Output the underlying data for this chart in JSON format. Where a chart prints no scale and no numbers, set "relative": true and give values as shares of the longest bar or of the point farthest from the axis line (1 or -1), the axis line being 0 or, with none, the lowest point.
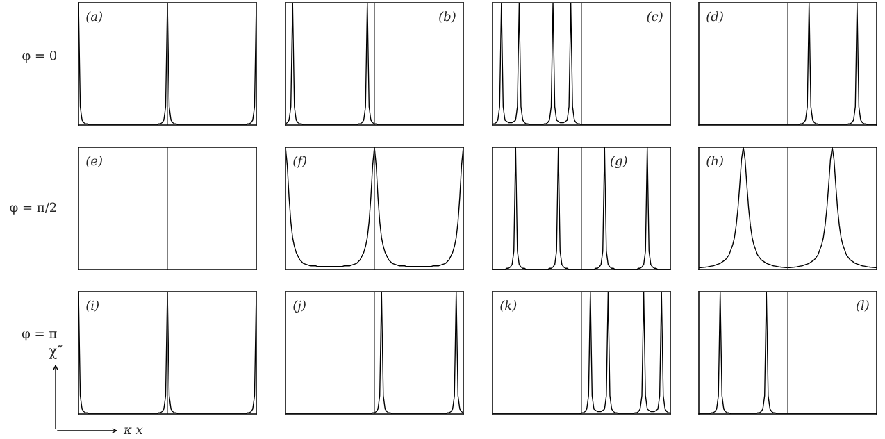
{
  "chart_data": [
    {
      "type": "line",
      "relative": true,
      "tick_labels": false,
      "ylabel": "φ = 0",
      "annotations": [
        "(a)"
      ],
      "categories": [
        null,
        null,
        null,
        null,
        null,
        null,
        null,
        null,
        null,
        null,
        null,
        null,
        null,
        null,
        null,
        null,
        null,
        null,
        null,
        null,
        null,
        null,
        null,
        null,
        null,
        null,
        null,
        null,
        null,
        null,
        null,
        null,
        null,
        null,
        null,
        null,
        null,
        null,
        null,
        null,
        null,
        null,
        null,
        null,
        null,
        null,
        null,
        null,
        null,
        null,
        null,
        null,
        null,
        null,
        null,
        null,
        null,
        null,
        null,
        null,
        null,
        null,
        null,
        null,
        null,
        null,
        null,
        null,
        null,
        null,
        null,
        null,
        null,
        null,
        null,
        null,
        null,
        null,
        null,
        null,
        null,
        null,
        null,
        null,
        null,
        null,
        null,
        null,
        null,
        null,
        null,
        null,
        null,
        null,
        null,
        null,
        null,
        null,
        null,
        null,
        null
      ],
      "series": [
        {
          "color": "#000000",
          "values": [
            1,
            0.15,
            0.04,
            0.02,
            0.01,
            0.01,
            0,
            0,
            0,
            0,
            0,
            0,
            0,
            0,
            0,
            0,
            0,
            0,
            0,
            0,
            0,
            0,
            0,
            0,
            0,
            0,
            0,
            0,
            0,
            0,
            0,
            0,
            0,
            0,
            0,
            0,
            0,
            0,
            0,
            0,
            0,
            0,
            0,
            0,
            0,
            0.01,
            0.01,
            0.02,
            0.04,
            0.15,
            1,
            0.15,
            0.04,
            0.02,
            0.01,
            0.01,
            0,
            0,
            0,
            0,
            0,
            0,
            0,
            0,
            0,
            0,
            0,
            0,
            0,
            0,
            0,
            0,
            0,
            0,
            0,
            0,
            0,
            0,
            0,
            0,
            0,
            0,
            0,
            0,
            0,
            0,
            0,
            0,
            0,
            0,
            0,
            0,
            0,
            0,
            0,
            0.01,
            0.01,
            0.02,
            0.04,
            0.15,
            1
          ]
        }
      ]
    },
    {
      "type": "line",
      "relative": true,
      "tick_labels": false,
      "annotations": [
        "(b)"
      ],
      "categories": [
        null,
        null,
        null,
        null,
        null,
        null,
        null,
        null,
        null,
        null,
        null,
        null,
        null,
        null,
        null,
        null,
        null,
        null,
        null,
        null,
        null,
        null,
        null,
        null,
        null,
        null,
        null,
        null,
        null,
        null,
        null,
        null,
        null,
        null,
        null,
        null,
        null,
        null,
        null,
        null,
        null,
        null,
        null,
        null,
        null,
        null,
        null,
        null,
        null,
        null,
        null,
        null,
        null,
        null,
        null,
        null,
        null,
        null,
        null,
        null,
        null,
        null,
        null,
        null,
        null,
        null,
        null,
        null,
        null,
        null,
        null,
        null,
        null,
        null,
        null,
        null,
        null,
        null,
        null,
        null,
        null,
        null,
        null,
        null,
        null,
        null,
        null,
        null,
        null,
        null,
        null,
        null,
        null,
        null,
        null,
        null,
        null,
        null,
        null,
        null,
        null
      ],
      "series": [
        {
          "color": "#000000",
          "values": [
            0.01,
            0.02,
            0.04,
            0.15,
            1,
            0.15,
            0.04,
            0.02,
            0.01,
            0.01,
            0,
            0,
            0,
            0,
            0,
            0,
            0,
            0,
            0,
            0,
            0,
            0,
            0,
            0,
            0,
            0,
            0,
            0,
            0,
            0,
            0,
            0,
            0,
            0,
            0,
            0,
            0,
            0,
            0,
            0,
            0,
            0.01,
            0.01,
            0.02,
            0.04,
            0.15,
            1,
            0.15,
            0.04,
            0.02,
            0.01,
            0.01,
            0,
            0,
            0,
            0,
            0,
            0,
            0,
            0,
            0,
            0,
            0,
            0,
            0,
            0,
            0,
            0,
            0,
            0,
            0,
            0,
            0,
            0,
            0,
            0,
            0,
            0,
            0,
            0,
            0,
            0,
            0,
            0,
            0,
            0,
            0,
            0,
            0,
            0,
            0,
            0,
            0,
            0,
            0,
            0,
            0,
            0,
            0,
            0,
            0
          ]
        }
      ]
    },
    {
      "type": "line",
      "relative": true,
      "tick_labels": false,
      "annotations": [
        "(c)"
      ],
      "categories": [
        null,
        null,
        null,
        null,
        null,
        null,
        null,
        null,
        null,
        null,
        null,
        null,
        null,
        null,
        null,
        null,
        null,
        null,
        null,
        null,
        null,
        null,
        null,
        null,
        null,
        null,
        null,
        null,
        null,
        null,
        null,
        null,
        null,
        null,
        null,
        null,
        null,
        null,
        null,
        null,
        null,
        null,
        null,
        null,
        null,
        null,
        null,
        null,
        null,
        null,
        null,
        null,
        null,
        null,
        null,
        null,
        null,
        null,
        null,
        null,
        null,
        null,
        null,
        null,
        null,
        null,
        null,
        null,
        null,
        null,
        null,
        null,
        null,
        null,
        null,
        null,
        null,
        null,
        null,
        null,
        null,
        null,
        null,
        null,
        null,
        null,
        null,
        null,
        null,
        null,
        null,
        null,
        null,
        null,
        null,
        null,
        null,
        null,
        null,
        null,
        null
      ],
      "series": [
        {
          "color": "#000000",
          "values": [
            0.01,
            0.01,
            0.02,
            0.04,
            0.15,
            1,
            0.15,
            0.04,
            0.03,
            0.02,
            0.02,
            0.02,
            0.03,
            0.04,
            0.15,
            1,
            0.15,
            0.04,
            0.02,
            0.01,
            0.01,
            0,
            0,
            0,
            0,
            0,
            0,
            0,
            0,
            0.01,
            0.01,
            0.02,
            0.04,
            0.15,
            1,
            0.15,
            0.04,
            0.03,
            0.02,
            0.02,
            0.02,
            0.03,
            0.04,
            0.15,
            1,
            0.15,
            0.04,
            0.02,
            0.01,
            0.01,
            0,
            0,
            0,
            0,
            0,
            0,
            0,
            0,
            0,
            0,
            0,
            0,
            0,
            0,
            0,
            0,
            0,
            0,
            0,
            0,
            0,
            0,
            0,
            0,
            0,
            0,
            0,
            0,
            0,
            0,
            0,
            0,
            0,
            0,
            0,
            0,
            0,
            0,
            0,
            0,
            0,
            0,
            0,
            0,
            0,
            0,
            0,
            0,
            0,
            0,
            0
          ]
        }
      ]
    },
    {
      "type": "line",
      "relative": true,
      "tick_labels": false,
      "annotations": [
        "(d)"
      ],
      "categories": [
        null,
        null,
        null,
        null,
        null,
        null,
        null,
        null,
        null,
        null,
        null,
        null,
        null,
        null,
        null,
        null,
        null,
        null,
        null,
        null,
        null,
        null,
        null,
        null,
        null,
        null,
        null,
        null,
        null,
        null,
        null,
        null,
        null,
        null,
        null,
        null,
        null,
        null,
        null,
        null,
        null,
        null,
        null,
        null,
        null,
        null,
        null,
        null,
        null,
        null,
        null,
        null,
        null,
        null,
        null,
        null,
        null,
        null,
        null,
        null,
        null,
        null,
        null,
        null,
        null,
        null,
        null,
        null,
        null,
        null,
        null,
        null,
        null,
        null,
        null,
        null,
        null,
        null,
        null,
        null,
        null,
        null,
        null,
        null,
        null,
        null,
        null,
        null,
        null,
        null,
        null,
        null,
        null,
        null,
        null,
        null,
        null,
        null,
        null,
        null,
        null
      ],
      "series": [
        {
          "color": "#000000",
          "values": [
            0,
            0,
            0,
            0,
            0,
            0,
            0,
            0,
            0,
            0,
            0,
            0,
            0,
            0,
            0,
            0,
            0,
            0,
            0,
            0,
            0,
            0,
            0,
            0,
            0,
            0,
            0,
            0,
            0,
            0,
            0,
            0,
            0,
            0,
            0,
            0,
            0,
            0,
            0,
            0,
            0,
            0,
            0,
            0,
            0,
            0,
            0,
            0,
            0,
            0,
            0,
            0,
            0,
            0,
            0,
            0,
            0,
            0.01,
            0.01,
            0.02,
            0.04,
            0.15,
            1,
            0.15,
            0.04,
            0.02,
            0.01,
            0.01,
            0,
            0,
            0,
            0,
            0,
            0,
            0,
            0,
            0,
            0,
            0,
            0,
            0,
            0,
            0,
            0,
            0.01,
            0.01,
            0.02,
            0.04,
            0.15,
            1,
            0.15,
            0.04,
            0.02,
            0.01,
            0.01,
            0,
            0,
            0,
            0,
            0,
            0
          ]
        }
      ]
    },
    {
      "type": "other",
      "ylabel": "φ = π/2",
      "annotations": [
        "(e)"
      ]
    },
    {
      "type": "line",
      "relative": true,
      "tick_labels": false,
      "annotations": [
        "(f)"
      ],
      "categories": [
        null,
        null,
        null,
        null,
        null,
        null,
        null,
        null,
        null,
        null,
        null,
        null,
        null,
        null,
        null,
        null,
        null,
        null,
        null,
        null,
        null,
        null,
        null,
        null,
        null,
        null,
        null,
        null,
        null,
        null,
        null,
        null,
        null,
        null,
        null,
        null,
        null,
        null,
        null,
        null,
        null,
        null,
        null,
        null,
        null,
        null,
        null,
        null,
        null,
        null,
        null,
        null,
        null,
        null,
        null,
        null,
        null,
        null,
        null,
        null,
        null,
        null,
        null,
        null,
        null,
        null,
        null,
        null,
        null,
        null,
        null,
        null,
        null,
        null,
        null,
        null,
        null,
        null,
        null,
        null,
        null,
        null,
        null,
        null,
        null,
        null,
        null,
        null,
        null,
        null,
        null,
        null,
        null,
        null,
        null,
        null,
        null,
        null,
        null,
        null,
        null
      ],
      "series": [
        {
          "color": "#000000",
          "values": [
            1,
            0.85,
            0.59,
            0.39,
            0.26,
            0.19,
            0.14,
            0.11,
            0.08,
            0.065,
            0.05,
            0.045,
            0.04,
            0.035,
            0.03,
            0.03,
            0.03,
            0.03,
            0.025,
            0.025,
            0.025,
            0.025,
            0.025,
            0.025,
            0.025,
            0.025,
            0.025,
            0.025,
            0.025,
            0.025,
            0.025,
            0.025,
            0.025,
            0.03,
            0.03,
            0.03,
            0.03,
            0.035,
            0.04,
            0.045,
            0.05,
            0.065,
            0.08,
            0.11,
            0.14,
            0.19,
            0.26,
            0.39,
            0.59,
            0.85,
            1,
            0.85,
            0.59,
            0.39,
            0.26,
            0.19,
            0.14,
            0.11,
            0.08,
            0.065,
            0.05,
            0.045,
            0.04,
            0.035,
            0.03,
            0.03,
            0.03,
            0.03,
            0.025,
            0.025,
            0.025,
            0.025,
            0.025,
            0.025,
            0.025,
            0.025,
            0.025,
            0.025,
            0.025,
            0.025,
            0.025,
            0.025,
            0.025,
            0.03,
            0.03,
            0.03,
            0.03,
            0.035,
            0.04,
            0.045,
            0.05,
            0.065,
            0.08,
            0.11,
            0.14,
            0.19,
            0.26,
            0.39,
            0.59,
            0.85,
            1
          ]
        }
      ]
    },
    {
      "type": "line",
      "relative": true,
      "tick_labels": false,
      "annotations": [
        "(g)"
      ],
      "categories": [
        null,
        null,
        null,
        null,
        null,
        null,
        null,
        null,
        null,
        null,
        null,
        null,
        null,
        null,
        null,
        null,
        null,
        null,
        null,
        null,
        null,
        null,
        null,
        null,
        null,
        null,
        null,
        null,
        null,
        null,
        null,
        null,
        null,
        null,
        null,
        null,
        null,
        null,
        null,
        null,
        null,
        null,
        null,
        null,
        null,
        null,
        null,
        null,
        null,
        null,
        null,
        null,
        null,
        null,
        null,
        null,
        null,
        null,
        null,
        null,
        null,
        null,
        null,
        null,
        null,
        null,
        null,
        null,
        null,
        null,
        null,
        null,
        null,
        null,
        null,
        null,
        null,
        null,
        null,
        null,
        null,
        null,
        null,
        null,
        null,
        null,
        null,
        null,
        null,
        null,
        null,
        null,
        null,
        null,
        null,
        null,
        null,
        null,
        null,
        null,
        null
      ],
      "series": [
        {
          "color": "#000000",
          "values": [
            0,
            0,
            0,
            0,
            0,
            0,
            0,
            0,
            0.01,
            0.01,
            0.02,
            0.04,
            0.15,
            1,
            0.15,
            0.04,
            0.02,
            0.01,
            0.01,
            0,
            0,
            0,
            0,
            0,
            0,
            0,
            0,
            0,
            0,
            0,
            0,
            0,
            0.01,
            0.01,
            0.02,
            0.04,
            0.15,
            1,
            0.15,
            0.04,
            0.02,
            0.01,
            0.01,
            0,
            0,
            0,
            0,
            0,
            0,
            0,
            0,
            0,
            0,
            0,
            0,
            0,
            0,
            0,
            0.01,
            0.01,
            0.02,
            0.04,
            0.15,
            1,
            0.15,
            0.04,
            0.02,
            0.01,
            0.01,
            0,
            0,
            0,
            0,
            0,
            0,
            0,
            0,
            0,
            0,
            0,
            0,
            0,
            0.01,
            0.01,
            0.02,
            0.04,
            0.15,
            1,
            0.15,
            0.04,
            0.02,
            0.01,
            0.01,
            0,
            0,
            0,
            0,
            0,
            0,
            0,
            0
          ]
        }
      ]
    },
    {
      "type": "line",
      "relative": true,
      "tick_labels": false,
      "annotations": [
        "(h)"
      ],
      "categories": [
        null,
        null,
        null,
        null,
        null,
        null,
        null,
        null,
        null,
        null,
        null,
        null,
        null,
        null,
        null,
        null,
        null,
        null,
        null,
        null,
        null,
        null,
        null,
        null,
        null,
        null,
        null,
        null,
        null,
        null,
        null,
        null,
        null,
        null,
        null,
        null,
        null,
        null,
        null,
        null,
        null,
        null,
        null,
        null,
        null,
        null,
        null,
        null,
        null,
        null,
        null,
        null,
        null,
        null,
        null,
        null,
        null,
        null,
        null,
        null,
        null,
        null,
        null,
        null,
        null,
        null,
        null,
        null,
        null,
        null,
        null,
        null,
        null,
        null,
        null,
        null,
        null,
        null,
        null,
        null,
        null,
        null,
        null,
        null,
        null,
        null,
        null,
        null,
        null,
        null,
        null,
        null,
        null,
        null,
        null,
        null,
        null,
        null,
        null,
        null,
        null
      ],
      "series": [
        {
          "color": "#000000",
          "values": [
            0.015,
            0.016,
            0.017,
            0.018,
            0.02,
            0.022,
            0.025,
            0.028,
            0.03,
            0.035,
            0.04,
            0.045,
            0.05,
            0.06,
            0.07,
            0.08,
            0.1,
            0.12,
            0.16,
            0.2,
            0.26,
            0.36,
            0.5,
            0.69,
            0.9,
            1,
            0.9,
            0.69,
            0.5,
            0.36,
            0.26,
            0.2,
            0.16,
            0.12,
            0.1,
            0.08,
            0.07,
            0.06,
            0.05,
            0.045,
            0.04,
            0.035,
            0.03,
            0.028,
            0.025,
            0.022,
            0.02,
            0.018,
            0.017,
            0.016,
            0.015,
            0.016,
            0.017,
            0.018,
            0.02,
            0.022,
            0.025,
            0.028,
            0.03,
            0.035,
            0.04,
            0.045,
            0.05,
            0.06,
            0.07,
            0.08,
            0.1,
            0.12,
            0.16,
            0.2,
            0.26,
            0.36,
            0.5,
            0.69,
            0.9,
            1,
            0.9,
            0.69,
            0.5,
            0.36,
            0.26,
            0.2,
            0.16,
            0.12,
            0.1,
            0.08,
            0.07,
            0.06,
            0.05,
            0.045,
            0.04,
            0.035,
            0.03,
            0.028,
            0.025,
            0.022,
            0.02,
            0.018,
            0.017,
            0.016,
            0.015
          ]
        }
      ]
    },
    {
      "type": "line",
      "relative": true,
      "tick_labels": false,
      "ylabel": "φ = π",
      "annotations": [
        "(i)",
        "χ″",
        "κ x"
      ],
      "categories": [
        null,
        null,
        null,
        null,
        null,
        null,
        null,
        null,
        null,
        null,
        null,
        null,
        null,
        null,
        null,
        null,
        null,
        null,
        null,
        null,
        null,
        null,
        null,
        null,
        null,
        null,
        null,
        null,
        null,
        null,
        null,
        null,
        null,
        null,
        null,
        null,
        null,
        null,
        null,
        null,
        null,
        null,
        null,
        null,
        null,
        null,
        null,
        null,
        null,
        null,
        null,
        null,
        null,
        null,
        null,
        null,
        null,
        null,
        null,
        null,
        null,
        null,
        null,
        null,
        null,
        null,
        null,
        null,
        null,
        null,
        null,
        null,
        null,
        null,
        null,
        null,
        null,
        null,
        null,
        null,
        null,
        null,
        null,
        null,
        null,
        null,
        null,
        null,
        null,
        null,
        null,
        null,
        null,
        null,
        null,
        null,
        null,
        null,
        null,
        null,
        null
      ],
      "series": [
        {
          "color": "#000000",
          "values": [
            1,
            0.15,
            0.04,
            0.02,
            0.01,
            0.01,
            0,
            0,
            0,
            0,
            0,
            0,
            0,
            0,
            0,
            0,
            0,
            0,
            0,
            0,
            0,
            0,
            0,
            0,
            0,
            0,
            0,
            0,
            0,
            0,
            0,
            0,
            0,
            0,
            0,
            0,
            0,
            0,
            0,
            0,
            0,
            0,
            0,
            0,
            0,
            0.01,
            0.01,
            0.02,
            0.04,
            0.15,
            1,
            0.15,
            0.04,
            0.02,
            0.01,
            0.01,
            0,
            0,
            0,
            0,
            0,
            0,
            0,
            0,
            0,
            0,
            0,
            0,
            0,
            0,
            0,
            0,
            0,
            0,
            0,
            0,
            0,
            0,
            0,
            0,
            0,
            0,
            0,
            0,
            0,
            0,
            0,
            0,
            0,
            0,
            0,
            0,
            0,
            0,
            0,
            0.01,
            0.01,
            0.02,
            0.04,
            0.15,
            1
          ]
        }
      ]
    },
    {
      "type": "line",
      "relative": true,
      "tick_labels": false,
      "annotations": [
        "(j)"
      ],
      "categories": [
        null,
        null,
        null,
        null,
        null,
        null,
        null,
        null,
        null,
        null,
        null,
        null,
        null,
        null,
        null,
        null,
        null,
        null,
        null,
        null,
        null,
        null,
        null,
        null,
        null,
        null,
        null,
        null,
        null,
        null,
        null,
        null,
        null,
        null,
        null,
        null,
        null,
        null,
        null,
        null,
        null,
        null,
        null,
        null,
        null,
        null,
        null,
        null,
        null,
        null,
        null,
        null,
        null,
        null,
        null,
        null,
        null,
        null,
        null,
        null,
        null,
        null,
        null,
        null,
        null,
        null,
        null,
        null,
        null,
        null,
        null,
        null,
        null,
        null,
        null,
        null,
        null,
        null,
        null,
        null,
        null,
        null,
        null,
        null,
        null,
        null,
        null,
        null,
        null,
        null,
        null,
        null,
        null,
        null,
        null,
        null,
        null,
        null,
        null,
        null,
        null
      ],
      "series": [
        {
          "color": "#000000",
          "values": [
            0,
            0,
            0,
            0,
            0,
            0,
            0,
            0,
            0,
            0,
            0,
            0,
            0,
            0,
            0,
            0,
            0,
            0,
            0,
            0,
            0,
            0,
            0,
            0,
            0,
            0,
            0,
            0,
            0,
            0,
            0,
            0,
            0,
            0,
            0,
            0,
            0,
            0,
            0,
            0,
            0,
            0,
            0,
            0,
            0,
            0,
            0,
            0,
            0,
            0.01,
            0.01,
            0.02,
            0.04,
            0.15,
            1,
            0.15,
            0.04,
            0.02,
            0.01,
            0.01,
            0,
            0,
            0,
            0,
            0,
            0,
            0,
            0,
            0,
            0,
            0,
            0,
            0,
            0,
            0,
            0,
            0,
            0,
            0,
            0,
            0,
            0,
            0,
            0,
            0,
            0,
            0,
            0,
            0,
            0,
            0,
            0.01,
            0.01,
            0.02,
            0.04,
            0.15,
            1,
            0.15,
            0.04,
            0.02,
            0.01
          ]
        }
      ]
    },
    {
      "type": "line",
      "relative": true,
      "tick_labels": false,
      "annotations": [
        "(k)"
      ],
      "categories": [
        null,
        null,
        null,
        null,
        null,
        null,
        null,
        null,
        null,
        null,
        null,
        null,
        null,
        null,
        null,
        null,
        null,
        null,
        null,
        null,
        null,
        null,
        null,
        null,
        null,
        null,
        null,
        null,
        null,
        null,
        null,
        null,
        null,
        null,
        null,
        null,
        null,
        null,
        null,
        null,
        null,
        null,
        null,
        null,
        null,
        null,
        null,
        null,
        null,
        null,
        null,
        null,
        null,
        null,
        null,
        null,
        null,
        null,
        null,
        null,
        null,
        null,
        null,
        null,
        null,
        null,
        null,
        null,
        null,
        null,
        null,
        null,
        null,
        null,
        null,
        null,
        null,
        null,
        null,
        null,
        null,
        null,
        null,
        null,
        null,
        null,
        null,
        null,
        null,
        null,
        null,
        null,
        null,
        null,
        null,
        null,
        null,
        null,
        null,
        null,
        null
      ],
      "series": [
        {
          "color": "#000000",
          "values": [
            0,
            0,
            0,
            0,
            0,
            0,
            0,
            0,
            0,
            0,
            0,
            0,
            0,
            0,
            0,
            0,
            0,
            0,
            0,
            0,
            0,
            0,
            0,
            0,
            0,
            0,
            0,
            0,
            0,
            0,
            0,
            0,
            0,
            0,
            0,
            0,
            0,
            0,
            0,
            0,
            0,
            0,
            0,
            0,
            0,
            0,
            0,
            0,
            0,
            0,
            0.01,
            0.01,
            0.02,
            0.04,
            0.15,
            1,
            0.15,
            0.04,
            0.03,
            0.02,
            0.02,
            0.02,
            0.03,
            0.04,
            0.15,
            1,
            0.15,
            0.04,
            0.02,
            0.01,
            0.01,
            0,
            0,
            0,
            0,
            0,
            0,
            0,
            0,
            0,
            0.01,
            0.01,
            0.02,
            0.04,
            0.15,
            1,
            0.15,
            0.04,
            0.03,
            0.02,
            0.02,
            0.02,
            0.03,
            0.04,
            0.15,
            1,
            0.15,
            0.04,
            0.02,
            0.01,
            0.01
          ]
        }
      ]
    },
    {
      "type": "line",
      "relative": true,
      "tick_labels": false,
      "annotations": [
        "(l)"
      ],
      "categories": [
        null,
        null,
        null,
        null,
        null,
        null,
        null,
        null,
        null,
        null,
        null,
        null,
        null,
        null,
        null,
        null,
        null,
        null,
        null,
        null,
        null,
        null,
        null,
        null,
        null,
        null,
        null,
        null,
        null,
        null,
        null,
        null,
        null,
        null,
        null,
        null,
        null,
        null,
        null,
        null,
        null,
        null,
        null,
        null,
        null,
        null,
        null,
        null,
        null,
        null,
        null,
        null,
        null,
        null,
        null,
        null,
        null,
        null,
        null,
        null,
        null,
        null,
        null,
        null,
        null,
        null,
        null,
        null,
        null,
        null,
        null,
        null,
        null,
        null,
        null,
        null,
        null,
        null,
        null,
        null,
        null,
        null,
        null,
        null,
        null,
        null,
        null,
        null,
        null,
        null,
        null,
        null,
        null,
        null,
        null,
        null,
        null,
        null,
        null,
        null,
        null
      ],
      "series": [
        {
          "color": "#000000",
          "values": [
            0,
            0,
            0,
            0,
            0,
            0,
            0,
            0.01,
            0.01,
            0.02,
            0.04,
            0.15,
            1,
            0.15,
            0.04,
            0.02,
            0.01,
            0.01,
            0,
            0,
            0,
            0,
            0,
            0,
            0,
            0,
            0,
            0,
            0,
            0,
            0,
            0,
            0,
            0.01,
            0.01,
            0.02,
            0.04,
            0.15,
            1,
            0.15,
            0.04,
            0.02,
            0.01,
            0.01,
            0,
            0,
            0,
            0,
            0,
            0,
            0,
            0,
            0,
            0,
            0,
            0,
            0,
            0,
            0,
            0,
            0,
            0,
            0,
            0,
            0,
            0,
            0,
            0,
            0,
            0,
            0,
            0,
            0,
            0,
            0,
            0,
            0,
            0,
            0,
            0,
            0,
            0,
            0,
            0,
            0,
            0,
            0,
            0,
            0,
            0,
            0,
            0,
            0,
            0,
            0,
            0,
            0,
            0,
            0,
            0,
            0
          ]
        }
      ]
    }
  ]
}
